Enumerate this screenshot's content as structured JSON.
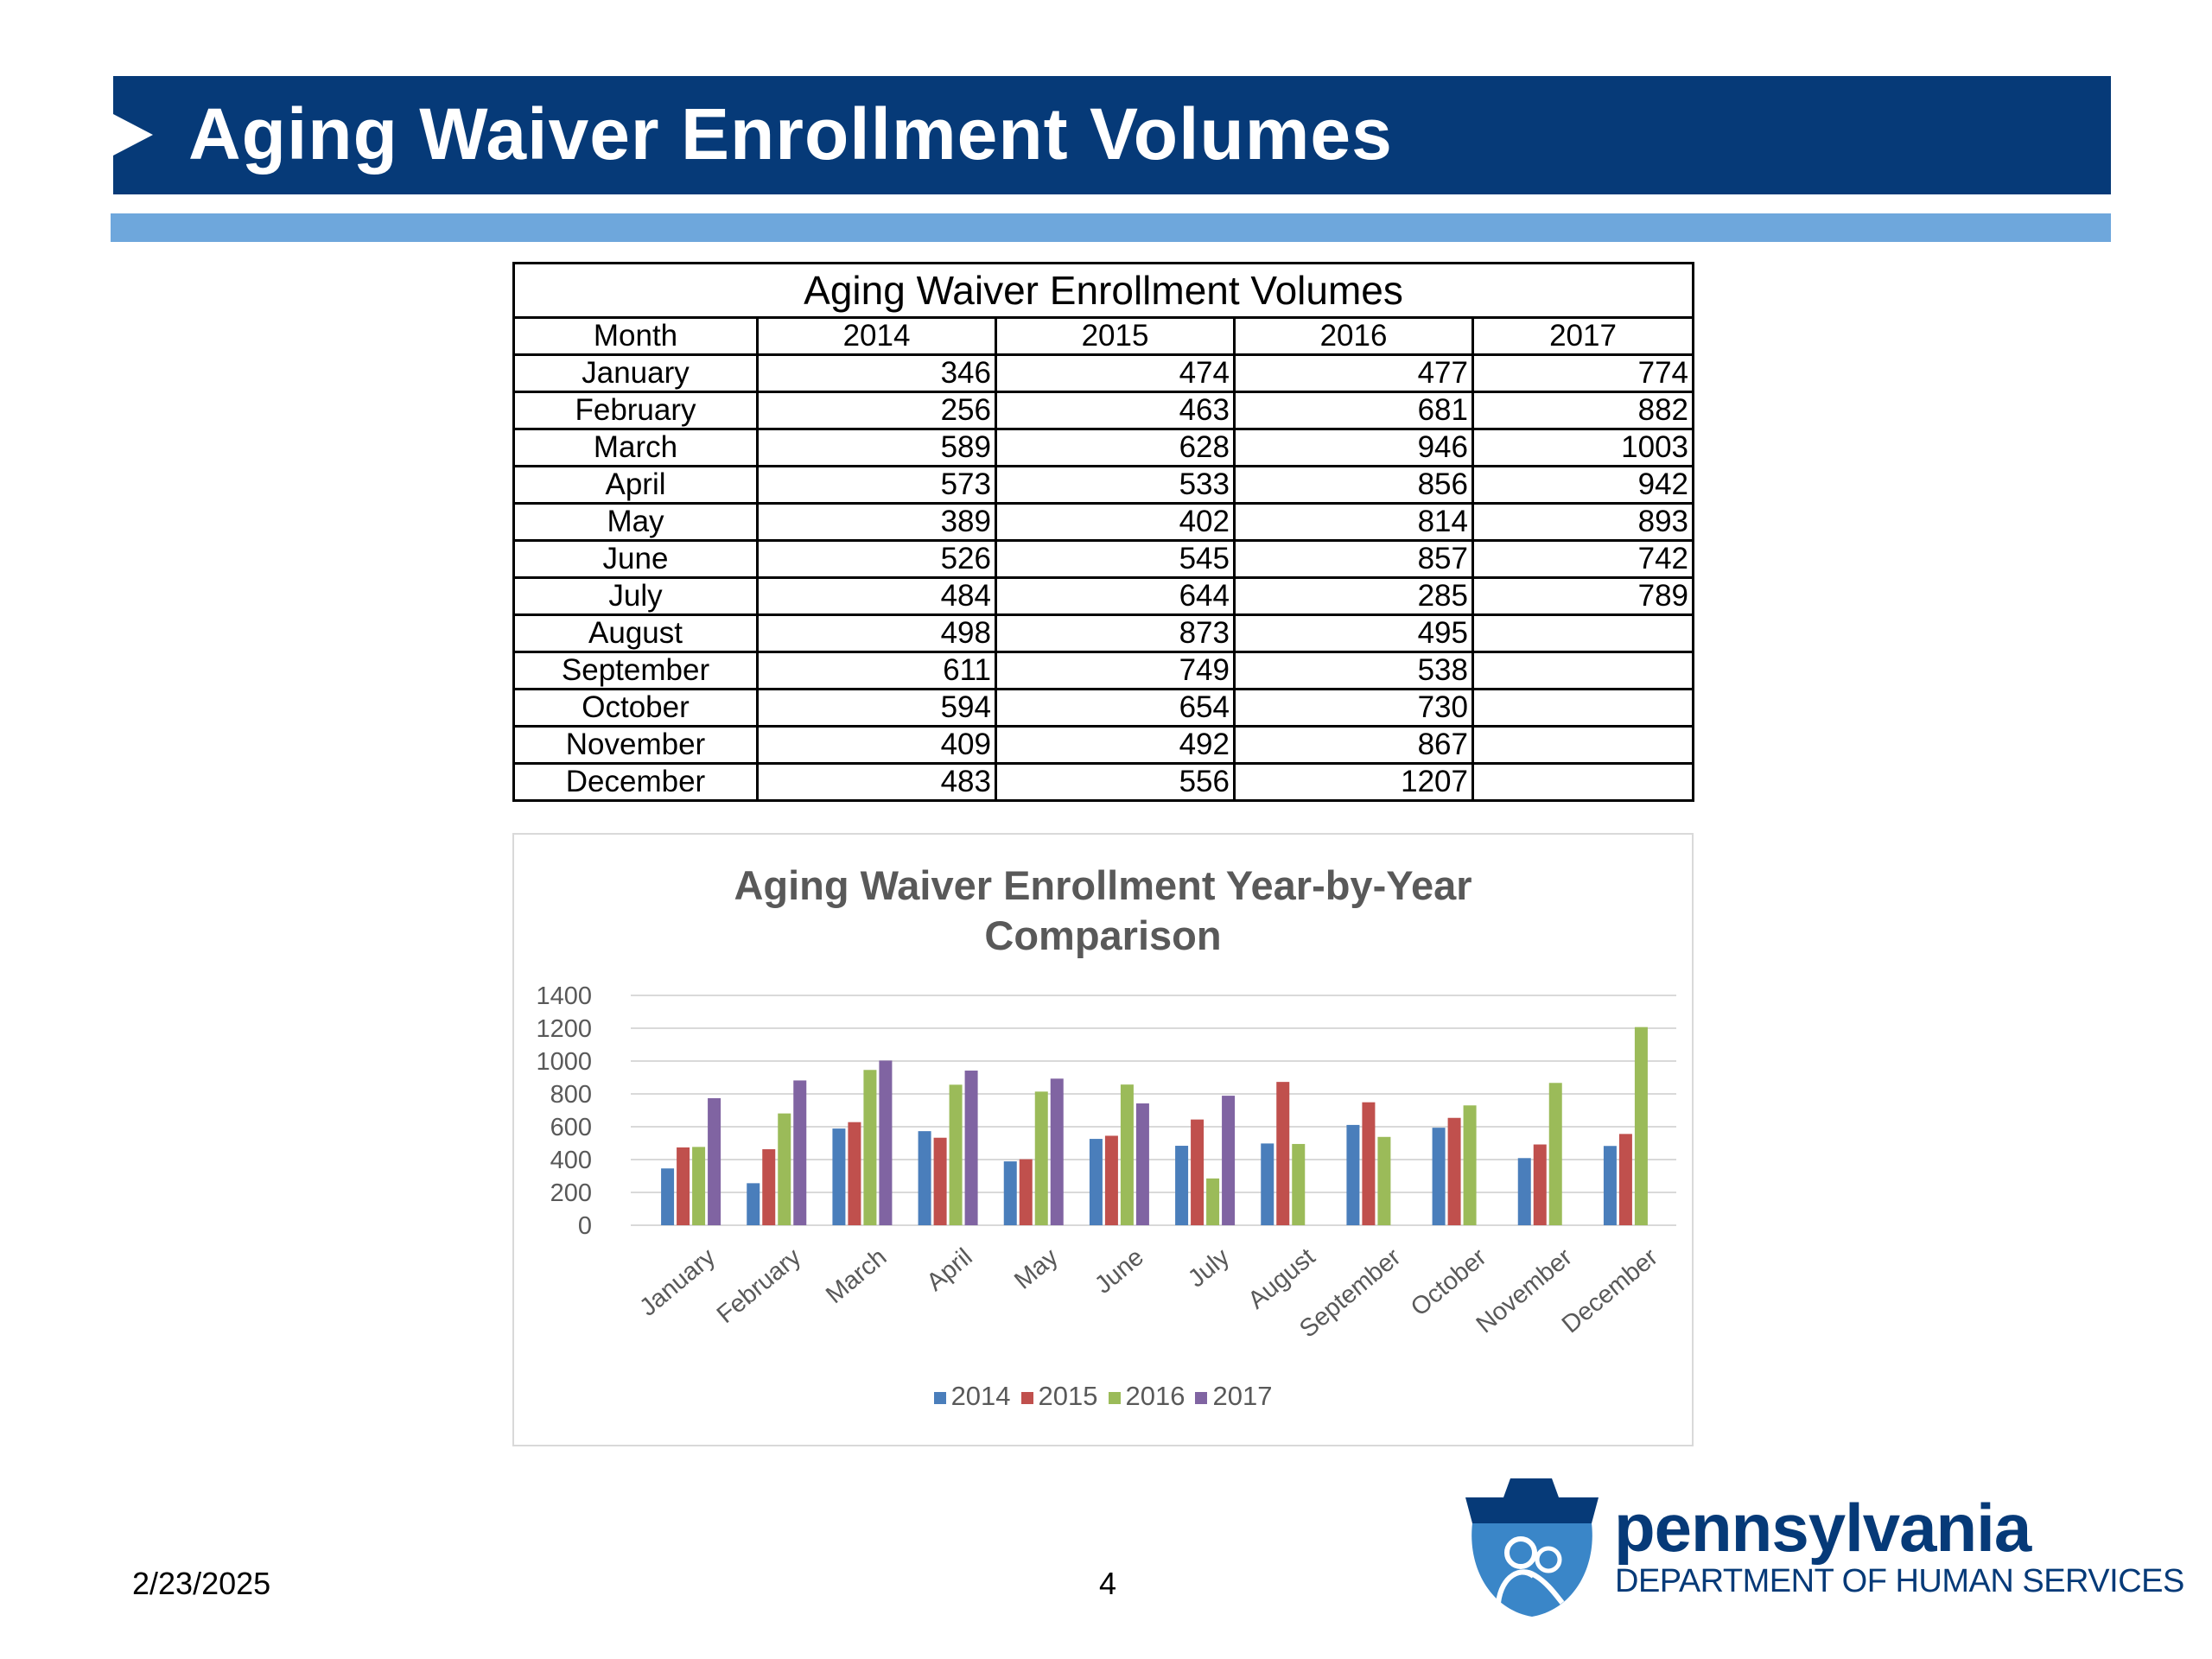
{
  "slide": {
    "title": "Aging Waiver Enrollment Volumes",
    "date": "2/23/2025",
    "page_number": "4"
  },
  "table": {
    "caption": "Aging Waiver Enrollment Volumes",
    "headers": [
      "Month",
      "2014",
      "2015",
      "2016",
      "2017"
    ],
    "rows": [
      [
        "January",
        "346",
        "474",
        "477",
        "774"
      ],
      [
        "February",
        "256",
        "463",
        "681",
        "882"
      ],
      [
        "March",
        "589",
        "628",
        "946",
        "1003"
      ],
      [
        "April",
        "573",
        "533",
        "856",
        "942"
      ],
      [
        "May",
        "389",
        "402",
        "814",
        "893"
      ],
      [
        "June",
        "526",
        "545",
        "857",
        "742"
      ],
      [
        "July",
        "484",
        "644",
        "285",
        "789"
      ],
      [
        "August",
        "498",
        "873",
        "495",
        ""
      ],
      [
        "September",
        "611",
        "749",
        "538",
        ""
      ],
      [
        "October",
        "594",
        "654",
        "730",
        ""
      ],
      [
        "November",
        "409",
        "492",
        "867",
        ""
      ],
      [
        "December",
        "483",
        "556",
        "1207",
        ""
      ]
    ]
  },
  "chart_data": {
    "type": "bar",
    "title_line1": "Aging Waiver Enrollment Year-by-Year",
    "title_line2": "Comparison",
    "xlabel": "",
    "ylabel": "",
    "categories": [
      "January",
      "February",
      "March",
      "April",
      "May",
      "June",
      "July",
      "August",
      "September",
      "October",
      "November",
      "December"
    ],
    "series": [
      {
        "name": "2014",
        "color": "#4a7ebb",
        "values": [
          346,
          256,
          589,
          573,
          389,
          526,
          484,
          498,
          611,
          594,
          409,
          483
        ]
      },
      {
        "name": "2015",
        "color": "#c0504d",
        "values": [
          474,
          463,
          628,
          533,
          402,
          545,
          644,
          873,
          749,
          654,
          492,
          556
        ]
      },
      {
        "name": "2016",
        "color": "#9bbb59",
        "values": [
          477,
          681,
          946,
          856,
          814,
          857,
          285,
          495,
          538,
          730,
          867,
          1207
        ]
      },
      {
        "name": "2017",
        "color": "#8064a2",
        "values": [
          774,
          882,
          1003,
          942,
          893,
          742,
          789,
          null,
          null,
          null,
          null,
          null
        ]
      }
    ],
    "ylim": [
      0,
      1400
    ],
    "yticks": [
      0,
      200,
      400,
      600,
      800,
      1000,
      1200,
      1400
    ],
    "grid": true,
    "legend_position": "bottom"
  },
  "branding": {
    "logo_wordmark": "pennsylvania",
    "logo_department": "DEPARTMENT OF HUMAN SERVICES",
    "brand_color": "#063a78",
    "accent_color": "#6ea7dc"
  }
}
